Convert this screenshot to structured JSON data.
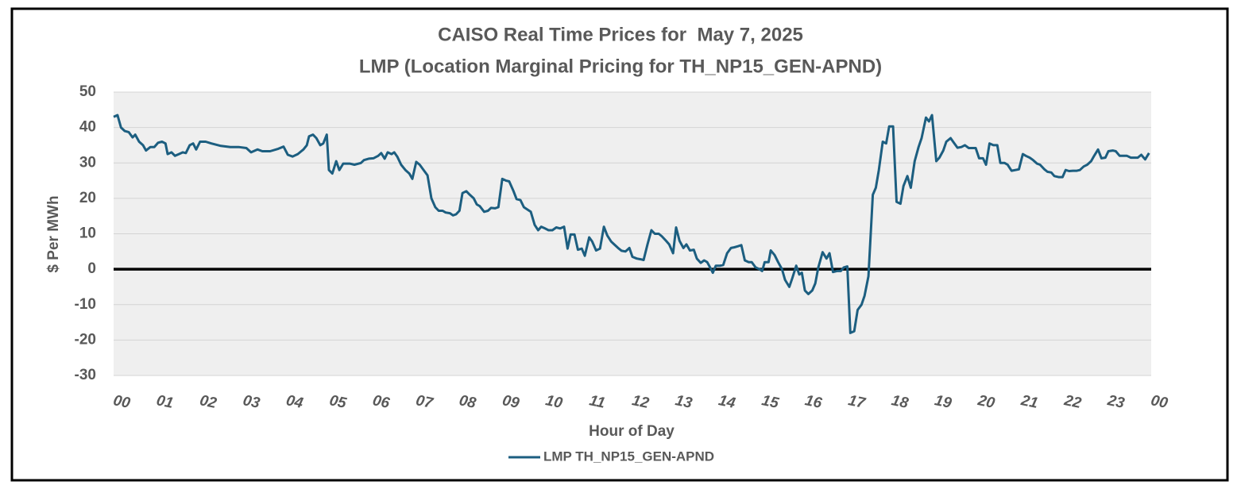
{
  "chart_data": {
    "type": "line",
    "title": "CAISO Real Time Prices for  May 7, 2025",
    "subtitle": "LMP (Location Marginal Pricing for TH_NP15_GEN-APND)",
    "x_label": "Hour of Day",
    "y_label": "$ Per MWh",
    "legend": "bottom",
    "grid": true,
    "xlim": [
      0,
      24
    ],
    "ylim": [
      -30,
      50
    ],
    "yticks": [
      -30,
      -20,
      -10,
      0,
      10,
      20,
      30,
      40,
      50
    ],
    "xticks": [
      {
        "value": 0,
        "label": "00"
      },
      {
        "value": 1,
        "label": "01"
      },
      {
        "value": 2,
        "label": "02"
      },
      {
        "value": 3,
        "label": "03"
      },
      {
        "value": 4,
        "label": "04"
      },
      {
        "value": 5,
        "label": "05"
      },
      {
        "value": 6,
        "label": "06"
      },
      {
        "value": 7,
        "label": "07"
      },
      {
        "value": 8,
        "label": "08"
      },
      {
        "value": 9,
        "label": "09"
      },
      {
        "value": 10,
        "label": "10"
      },
      {
        "value": 11,
        "label": "11"
      },
      {
        "value": 12,
        "label": "12"
      },
      {
        "value": 13,
        "label": "13"
      },
      {
        "value": 14,
        "label": "14"
      },
      {
        "value": 15,
        "label": "15"
      },
      {
        "value": 16,
        "label": "16"
      },
      {
        "value": 17,
        "label": "17"
      },
      {
        "value": 18,
        "label": "18"
      },
      {
        "value": 19,
        "label": "19"
      },
      {
        "value": 20,
        "label": "20"
      },
      {
        "value": 21,
        "label": "21"
      },
      {
        "value": 22,
        "label": "22"
      },
      {
        "value": 23,
        "label": "23"
      },
      {
        "value": 24,
        "label": "00"
      }
    ],
    "x": [
      0,
      0.09,
      0.17,
      0.26,
      0.35,
      0.44,
      0.5,
      0.59,
      0.68,
      0.75,
      0.85,
      0.94,
      1.03,
      1.12,
      1.2,
      1.25,
      1.34,
      1.42,
      1.51,
      1.6,
      1.67,
      1.76,
      1.84,
      1.91,
      2.0,
      2.13,
      2.26,
      2.48,
      2.7,
      2.89,
      3.07,
      3.18,
      3.33,
      3.44,
      3.62,
      3.81,
      3.93,
      4.03,
      4.14,
      4.26,
      4.39,
      4.47,
      4.52,
      4.61,
      4.69,
      4.78,
      4.85,
      4.93,
      4.98,
      5.06,
      5.15,
      5.22,
      5.31,
      5.46,
      5.57,
      5.72,
      5.79,
      5.9,
      6.01,
      6.12,
      6.19,
      6.27,
      6.34,
      6.43,
      6.49,
      6.56,
      6.65,
      6.75,
      6.84,
      6.91,
      7.0,
      7.08,
      7.17,
      7.26,
      7.35,
      7.44,
      7.52,
      7.61,
      7.68,
      7.78,
      7.85,
      7.92,
      8.0,
      8.07,
      8.16,
      8.24,
      8.33,
      8.4,
      8.47,
      8.57,
      8.66,
      8.73,
      8.82,
      8.9,
      8.99,
      9.08,
      9.15,
      9.25,
      9.32,
      9.41,
      9.49,
      9.58,
      9.65,
      9.74,
      9.82,
      9.89,
      9.98,
      10.06,
      10.15,
      10.24,
      10.33,
      10.42,
      10.5,
      10.57,
      10.66,
      10.74,
      10.83,
      10.9,
      11.0,
      11.07,
      11.16,
      11.25,
      11.34,
      11.42,
      11.51,
      11.58,
      11.67,
      11.75,
      11.84,
      11.93,
      12.0,
      12.1,
      12.19,
      12.26,
      12.35,
      12.44,
      12.52,
      12.61,
      12.68,
      12.78,
      12.85,
      12.94,
      13.01,
      13.09,
      13.18,
      13.25,
      13.33,
      13.42,
      13.49,
      13.58,
      13.66,
      13.73,
      13.82,
      13.86,
      13.93,
      14.03,
      14.1,
      14.19,
      14.28,
      14.36,
      14.45,
      14.52,
      14.6,
      14.69,
      14.76,
      14.85,
      14.94,
      15.0,
      15.06,
      15.15,
      15.2,
      15.29,
      15.37,
      15.46,
      15.53,
      15.63,
      15.7,
      15.79,
      15.86,
      15.92,
      15.99,
      16.07,
      16.16,
      16.23,
      16.3,
      16.4,
      16.49,
      16.56,
      16.64,
      16.73,
      16.82,
      16.89,
      16.97,
      17.04,
      17.13,
      17.21,
      17.3,
      17.37,
      17.46,
      17.56,
      17.63,
      17.7,
      17.79,
      17.87,
      17.94,
      18.03,
      18.11,
      18.2,
      18.27,
      18.36,
      18.44,
      18.53,
      18.62,
      18.69,
      18.79,
      18.86,
      18.93,
      19.03,
      19.1,
      19.19,
      19.26,
      19.36,
      19.43,
      19.52,
      19.61,
      19.69,
      19.78,
      19.94,
      20.02,
      20.11,
      20.18,
      20.26,
      20.35,
      20.44,
      20.51,
      20.61,
      20.68,
      20.77,
      20.94,
      21.03,
      21.1,
      21.19,
      21.27,
      21.36,
      21.43,
      21.53,
      21.6,
      21.69,
      21.76,
      21.86,
      21.95,
      22.02,
      22.1,
      22.19,
      22.28,
      22.35,
      22.44,
      22.52,
      22.61,
      22.68,
      22.77,
      22.85,
      22.94,
      23.01,
      23.11,
      23.18,
      23.27,
      23.36,
      23.44,
      23.53,
      23.6,
      23.69,
      23.77,
      23.86,
      23.95
    ],
    "series": [
      {
        "name": "LMP TH_NP15_GEN-APND",
        "color": "#1c5e80",
        "values": [
          43,
          43.5,
          40,
          39,
          38.7,
          37.2,
          38,
          36,
          35,
          33.5,
          34.5,
          34.5,
          35.7,
          36,
          35.5,
          32.5,
          33,
          32,
          32.5,
          33,
          32.8,
          35,
          35.5,
          33.8,
          36,
          36,
          35.5,
          34.8,
          34.5,
          34.5,
          34.2,
          33,
          33.8,
          33.3,
          33.3,
          34,
          34.6,
          32.3,
          31.8,
          32.5,
          33.8,
          35,
          37.5,
          38,
          37,
          35,
          35.5,
          38,
          28,
          27,
          30.5,
          28,
          29.8,
          29.8,
          29.5,
          30,
          30.8,
          31.2,
          31.3,
          32,
          32.8,
          31.2,
          33,
          32.5,
          33,
          31.8,
          29.5,
          28,
          27,
          25.5,
          30.3,
          29.5,
          28,
          26.5,
          20,
          17.5,
          16.5,
          16.5,
          16,
          15.8,
          15.2,
          15.5,
          16.5,
          21.5,
          22,
          21,
          20,
          18.3,
          17.8,
          16.2,
          16.5,
          17.3,
          17.2,
          17.5,
          25.5,
          25,
          24.8,
          22,
          19.8,
          19.5,
          17.5,
          16.8,
          16.2,
          12.5,
          11,
          12,
          11.5,
          11,
          11,
          11.8,
          11.5,
          12,
          5.8,
          9.8,
          9.8,
          5.5,
          5.8,
          3.8,
          9,
          7.8,
          5.3,
          5.8,
          12,
          9.5,
          7.8,
          7,
          6,
          5.2,
          5,
          6,
          3.5,
          3,
          2.8,
          2.6,
          7,
          11,
          10,
          10,
          9.3,
          8,
          7,
          4.5,
          11.8,
          8,
          6,
          7,
          5.3,
          5.5,
          3,
          1.8,
          2.5,
          2,
          0,
          -1,
          1,
          1,
          1.2,
          4.5,
          6,
          6.2,
          6.5,
          6.8,
          2.5,
          2,
          2,
          0.5,
          0,
          -0.5,
          2,
          2,
          5.3,
          4,
          2,
          0,
          -3,
          -5,
          -2.5,
          1,
          -1.5,
          -1,
          -6,
          -7,
          -6,
          -4,
          0.5,
          4.8,
          3,
          4.5,
          -0.8,
          -0.5,
          -0.5,
          0.5,
          0.8,
          -18,
          -17.5,
          -11.5,
          -10,
          -7.5,
          -2,
          21,
          23,
          28,
          36,
          35.5,
          40.3,
          40.3,
          19,
          18.5,
          23.5,
          26.3,
          23,
          30.5,
          34.5,
          37,
          42.8,
          41.7,
          43.5,
          30.5,
          31.5,
          33.5,
          36,
          37,
          35.8,
          34.3,
          34.5,
          35,
          34.2,
          34.2,
          31.3,
          31.3,
          29.5,
          35.5,
          35,
          35,
          30,
          30,
          29.5,
          27.8,
          28.2,
          32.5,
          32,
          31.5,
          30.8,
          29.8,
          29.5,
          28.2,
          27.5,
          27.3,
          26.3,
          26,
          26,
          28,
          27.7,
          27.8,
          27.8,
          28,
          29,
          29.5,
          30.5,
          32,
          33.8,
          31.3,
          31.5,
          33.3,
          33.5,
          33.3,
          32,
          32,
          32,
          31.5,
          31.5,
          31.5,
          32.3,
          31,
          32.8
        ]
      }
    ]
  }
}
